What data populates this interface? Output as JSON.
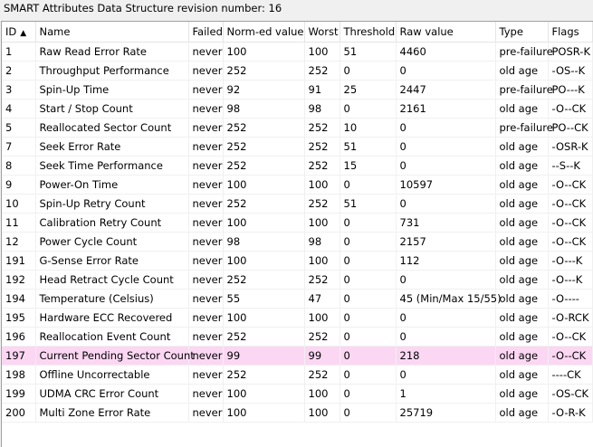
{
  "revision_label": "SMART Attributes Data Structure revision number: 16",
  "columns": [
    {
      "label": "ID",
      "sort": "▲"
    },
    {
      "label": "Name"
    },
    {
      "label": "Failed"
    },
    {
      "label": "Norm-ed value"
    },
    {
      "label": "Worst"
    },
    {
      "label": "Threshold"
    },
    {
      "label": "Raw value"
    },
    {
      "label": "Type"
    },
    {
      "label": "Flags"
    }
  ],
  "rows": [
    {
      "id": "1",
      "name": "Raw Read Error Rate",
      "failed": "never",
      "normed": "100",
      "worst": "100",
      "threshold": "51",
      "raw": "4460",
      "type": "pre-failure",
      "flags": "POSR-K"
    },
    {
      "id": "2",
      "name": "Throughput Performance",
      "failed": "never",
      "normed": "252",
      "worst": "252",
      "threshold": "0",
      "raw": "0",
      "type": "old age",
      "flags": "-OS--K"
    },
    {
      "id": "3",
      "name": "Spin-Up Time",
      "failed": "never",
      "normed": "92",
      "worst": "91",
      "threshold": "25",
      "raw": "2447",
      "type": "pre-failure",
      "flags": "PO---K"
    },
    {
      "id": "4",
      "name": "Start / Stop Count",
      "failed": "never",
      "normed": "98",
      "worst": "98",
      "threshold": "0",
      "raw": "2161",
      "type": "old age",
      "flags": "-O--CK"
    },
    {
      "id": "5",
      "name": "Reallocated Sector Count",
      "failed": "never",
      "normed": "252",
      "worst": "252",
      "threshold": "10",
      "raw": "0",
      "type": "pre-failure",
      "flags": "PO--CK"
    },
    {
      "id": "7",
      "name": "Seek Error Rate",
      "failed": "never",
      "normed": "252",
      "worst": "252",
      "threshold": "51",
      "raw": "0",
      "type": "old age",
      "flags": "-OSR-K"
    },
    {
      "id": "8",
      "name": "Seek Time Performance",
      "failed": "never",
      "normed": "252",
      "worst": "252",
      "threshold": "15",
      "raw": "0",
      "type": "old age",
      "flags": "--S--K"
    },
    {
      "id": "9",
      "name": "Power-On Time",
      "failed": "never",
      "normed": "100",
      "worst": "100",
      "threshold": "0",
      "raw": "10597",
      "type": "old age",
      "flags": "-O--CK"
    },
    {
      "id": "10",
      "name": "Spin-Up Retry Count",
      "failed": "never",
      "normed": "252",
      "worst": "252",
      "threshold": "51",
      "raw": "0",
      "type": "old age",
      "flags": "-O--CK"
    },
    {
      "id": "11",
      "name": "Calibration Retry Count",
      "failed": "never",
      "normed": "100",
      "worst": "100",
      "threshold": "0",
      "raw": "731",
      "type": "old age",
      "flags": "-O--CK"
    },
    {
      "id": "12",
      "name": "Power Cycle Count",
      "failed": "never",
      "normed": "98",
      "worst": "98",
      "threshold": "0",
      "raw": "2157",
      "type": "old age",
      "flags": "-O--CK"
    },
    {
      "id": "191",
      "name": "G-Sense Error Rate",
      "failed": "never",
      "normed": "100",
      "worst": "100",
      "threshold": "0",
      "raw": "112",
      "type": "old age",
      "flags": "-O---K"
    },
    {
      "id": "192",
      "name": "Head Retract Cycle Count",
      "failed": "never",
      "normed": "252",
      "worst": "252",
      "threshold": "0",
      "raw": "0",
      "type": "old age",
      "flags": "-O---K"
    },
    {
      "id": "194",
      "name": "Temperature (Celsius)",
      "failed": "never",
      "normed": "55",
      "worst": "47",
      "threshold": "0",
      "raw": "45 (Min/Max 15/55)",
      "type": "old age",
      "flags": "-O----"
    },
    {
      "id": "195",
      "name": "Hardware ECC Recovered",
      "failed": "never",
      "normed": "100",
      "worst": "100",
      "threshold": "0",
      "raw": "0",
      "type": "old age",
      "flags": "-O-RCK"
    },
    {
      "id": "196",
      "name": "Reallocation Event Count",
      "failed": "never",
      "normed": "252",
      "worst": "252",
      "threshold": "0",
      "raw": "0",
      "type": "old age",
      "flags": "-O--CK"
    },
    {
      "id": "197",
      "name": "Current Pending Sector Count",
      "failed": "never",
      "normed": "99",
      "worst": "99",
      "threshold": "0",
      "raw": "218",
      "type": "old age",
      "flags": "-O--CK",
      "selected": true
    },
    {
      "id": "198",
      "name": "Offline Uncorrectable",
      "failed": "never",
      "normed": "252",
      "worst": "252",
      "threshold": "0",
      "raw": "0",
      "type": "old age",
      "flags": "----CK"
    },
    {
      "id": "199",
      "name": "UDMA CRC Error Count",
      "failed": "never",
      "normed": "100",
      "worst": "100",
      "threshold": "0",
      "raw": "1",
      "type": "old age",
      "flags": "-OS-CK"
    },
    {
      "id": "200",
      "name": "Multi Zone Error Rate",
      "failed": "never",
      "normed": "100",
      "worst": "100",
      "threshold": "0",
      "raw": "25719",
      "type": "old age",
      "flags": "-O-R-K"
    }
  ]
}
